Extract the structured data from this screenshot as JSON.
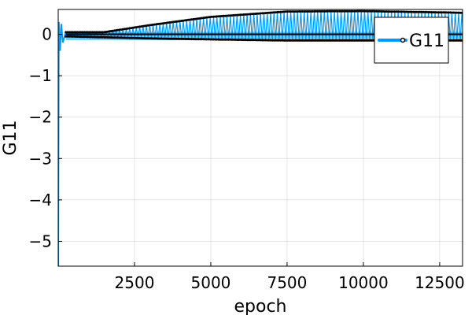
{
  "chart_data": {
    "type": "line",
    "title": "",
    "xlabel": "epoch",
    "ylabel": "G11",
    "xlim": [
      0,
      13250
    ],
    "ylim": [
      -5.6,
      0.6
    ],
    "x_ticks": [
      2500,
      5000,
      7500,
      10000,
      12500
    ],
    "x_tick_labels": [
      "2500",
      "5000",
      "7500",
      "10000",
      "12500"
    ],
    "y_ticks": [
      0,
      -1,
      -2,
      -3,
      -4,
      -5
    ],
    "y_tick_labels": [
      "0",
      "−1",
      "−2",
      "−3",
      "−4",
      "−5"
    ],
    "grid": true,
    "legend": {
      "position": "top-right",
      "entries": [
        "G11"
      ]
    },
    "series": [
      {
        "name": "G11",
        "color": "#009AFA",
        "marker_color": "#000000",
        "initial_transient": [
          {
            "epoch": 0,
            "value": -5.6
          },
          {
            "epoch": 20,
            "value": 0.3
          },
          {
            "epoch": 60,
            "value": -0.4
          },
          {
            "epoch": 100,
            "value": 0.25
          },
          {
            "epoch": 150,
            "value": -0.2
          },
          {
            "epoch": 250,
            "value": 0.05
          }
        ],
        "oscillation_envelope_upper": [
          {
            "epoch": 250,
            "value": 0.05
          },
          {
            "epoch": 1500,
            "value": 0.05
          },
          {
            "epoch": 3000,
            "value": 0.22
          },
          {
            "epoch": 5000,
            "value": 0.42
          },
          {
            "epoch": 7500,
            "value": 0.55
          },
          {
            "epoch": 10000,
            "value": 0.56
          },
          {
            "epoch": 13250,
            "value": 0.52
          }
        ],
        "oscillation_envelope_lower": [
          {
            "epoch": 250,
            "value": -0.05
          },
          {
            "epoch": 3000,
            "value": -0.1
          },
          {
            "epoch": 7500,
            "value": -0.15
          },
          {
            "epoch": 13250,
            "value": -0.15
          }
        ]
      }
    ]
  }
}
